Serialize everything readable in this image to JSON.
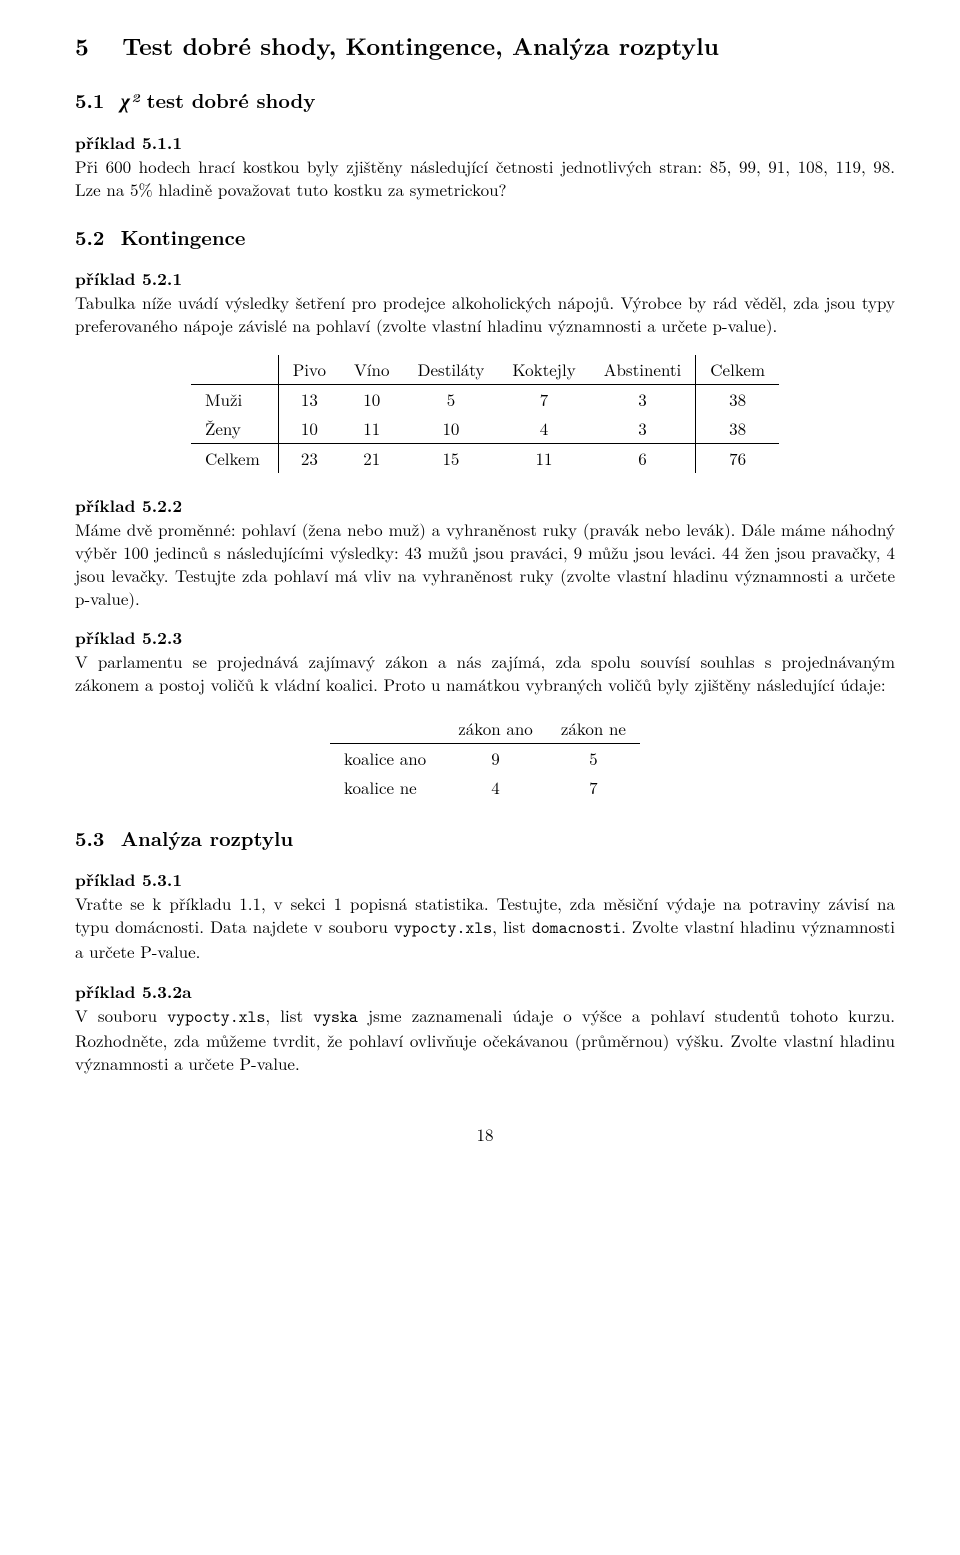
{
  "section": {
    "num": "5",
    "title": "Test dobré shody, Kontingence, Analýza rozptylu"
  },
  "sub51": {
    "num": "5.1",
    "chi2": "χ²",
    "title_rest": " test dobré shody",
    "ex511_label": "příklad 5.1.1",
    "ex511_para": "Při 600 hodech hrací kostkou byly zjištěny následující četnosti jednotlivých stran: 85, 99, 91, 108, 119, 98. Lze na 5% hladině považovat tuto kostku za symetrickou?"
  },
  "sub52": {
    "num": "5.2",
    "title": "Kontingence",
    "ex521_label": "příklad 5.2.1",
    "ex521_para": "Tabulka níže uvádí výsledky šetření pro prodejce alkoholických nápojů. Výrobce by rád věděl, zda jsou typy preferovaného nápoje závislé na pohlaví (zvolte vlastní hladinu významnosti a určete p-value).",
    "table1": {
      "headers": [
        "",
        "Pivo",
        "Víno",
        "Destiláty",
        "Koktejly",
        "Abstinenti",
        "Celkem"
      ],
      "rows": [
        [
          "Muži",
          "13",
          "10",
          "5",
          "7",
          "3",
          "38"
        ],
        [
          "Ženy",
          "10",
          "11",
          "10",
          "4",
          "3",
          "38"
        ],
        [
          "Celkem",
          "23",
          "21",
          "15",
          "11",
          "6",
          "76"
        ]
      ]
    },
    "ex522_label": "příklad 5.2.2",
    "ex522_para": "Máme dvě proměnné: pohlaví (žena nebo muž) a vyhraněnost ruky (pravák nebo levák). Dále máme náhodný výběr 100 jedinců s následujícími výsledky: 43 mužů jsou praváci, 9 můžu jsou leváci. 44 žen jsou pravačky, 4 jsou levačky. Testujte zda pohlaví má vliv na vyhraněnost ruky (zvolte vlastní hladinu významnosti a určete p-value).",
    "ex523_label": "příklad 5.2.3",
    "ex523_para": "V parlamentu se projednává zajímavý zákon a nás zajímá, zda spolu souvísí souhlas s projednávaným zákonem a postoj voličů k vládní koalici. Proto u namátkou vybraných voličů byly zjištěny následující údaje:",
    "table2": {
      "headers": [
        "",
        "zákon ano",
        "zákon ne"
      ],
      "rows": [
        [
          "koalice ano",
          "9",
          "5"
        ],
        [
          "koalice ne",
          "4",
          "7"
        ]
      ]
    }
  },
  "sub53": {
    "num": "5.3",
    "title": "Analýza rozptylu",
    "ex531_label": "příklad 5.3.1",
    "ex531_prefix": "Vraťte se k příkladu 1.1, v sekci 1 popisná statistika. Testujte, zda měsiční výdaje na potraviny závisí na typu domácnosti. Data najdete v souboru ",
    "ex531_file1": "vypocty.xls",
    "ex531_mid": ", list ",
    "ex531_file2": "domacnosti",
    "ex531_suffix": ". Zvolte vlastní hladinu významnosti a určete P-value.",
    "ex532a_label": "příklad 5.3.2a",
    "ex532a_prefix": "V souboru ",
    "ex532a_file1": "vypocty.xls",
    "ex532a_mid1": ", list ",
    "ex532a_file2": "vyska",
    "ex532a_suffix": " jsme zaznamenali údaje o výšce a pohlaví studentů tohoto kurzu. Rozhodněte, zda můžeme tvrdit, že pohlaví ovlivňuje očekávanou (průměrnou) výšku. Zvolte vlastní hladinu významnosti a určete P-value."
  },
  "page_number": "18"
}
